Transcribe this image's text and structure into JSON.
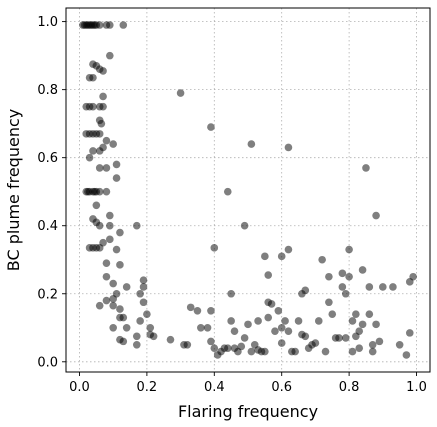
{
  "chart_data": {
    "type": "scatter",
    "title": "",
    "xlabel": "Flaring frequency",
    "ylabel": "BC plume frequency",
    "xlim": [
      -0.04,
      1.04
    ],
    "ylim": [
      -0.03,
      1.04
    ],
    "xticks": [
      0.0,
      0.2,
      0.4,
      0.6,
      0.8,
      1.0
    ],
    "xtick_labels": [
      "0.0",
      "0.2",
      "0.4",
      "0.6",
      "0.8",
      "1.0"
    ],
    "yticks": [
      0.0,
      0.2,
      0.4,
      0.6,
      0.8,
      1.0
    ],
    "ytick_labels": [
      "0.0",
      "0.2",
      "0.4",
      "0.6",
      "0.8",
      "1.0"
    ],
    "grid": true,
    "marker_color": "#000000",
    "marker_alpha": 0.5,
    "series": [
      {
        "points": [
          [
            0.01,
            0.99
          ],
          [
            0.015,
            0.99
          ],
          [
            0.02,
            0.99
          ],
          [
            0.025,
            0.99
          ],
          [
            0.03,
            0.99
          ],
          [
            0.035,
            0.99
          ],
          [
            0.04,
            0.99
          ],
          [
            0.045,
            0.99
          ],
          [
            0.05,
            0.99
          ],
          [
            0.06,
            0.99
          ],
          [
            0.08,
            0.99
          ],
          [
            0.09,
            0.99
          ],
          [
            0.13,
            0.99
          ],
          [
            0.09,
            0.9
          ],
          [
            0.04,
            0.875
          ],
          [
            0.05,
            0.87
          ],
          [
            0.06,
            0.86
          ],
          [
            0.07,
            0.855
          ],
          [
            0.03,
            0.835
          ],
          [
            0.04,
            0.835
          ],
          [
            0.07,
            0.78
          ],
          [
            0.02,
            0.75
          ],
          [
            0.03,
            0.75
          ],
          [
            0.04,
            0.75
          ],
          [
            0.06,
            0.75
          ],
          [
            0.07,
            0.75
          ],
          [
            0.06,
            0.71
          ],
          [
            0.065,
            0.7
          ],
          [
            0.02,
            0.67
          ],
          [
            0.03,
            0.67
          ],
          [
            0.04,
            0.67
          ],
          [
            0.05,
            0.67
          ],
          [
            0.06,
            0.67
          ],
          [
            0.08,
            0.65
          ],
          [
            0.1,
            0.64
          ],
          [
            0.04,
            0.62
          ],
          [
            0.06,
            0.62
          ],
          [
            0.07,
            0.63
          ],
          [
            0.03,
            0.6
          ],
          [
            0.11,
            0.58
          ],
          [
            0.06,
            0.57
          ],
          [
            0.08,
            0.57
          ],
          [
            0.11,
            0.54
          ],
          [
            0.02,
            0.5
          ],
          [
            0.025,
            0.5
          ],
          [
            0.03,
            0.5
          ],
          [
            0.04,
            0.5
          ],
          [
            0.045,
            0.5
          ],
          [
            0.05,
            0.5
          ],
          [
            0.06,
            0.5
          ],
          [
            0.08,
            0.5
          ],
          [
            0.05,
            0.46
          ],
          [
            0.09,
            0.43
          ],
          [
            0.04,
            0.42
          ],
          [
            0.05,
            0.41
          ],
          [
            0.06,
            0.4
          ],
          [
            0.09,
            0.4
          ],
          [
            0.17,
            0.4
          ],
          [
            0.12,
            0.38
          ],
          [
            0.09,
            0.36
          ],
          [
            0.07,
            0.35
          ],
          [
            0.03,
            0.335
          ],
          [
            0.04,
            0.335
          ],
          [
            0.05,
            0.335
          ],
          [
            0.06,
            0.335
          ],
          [
            0.11,
            0.33
          ],
          [
            0.08,
            0.29
          ],
          [
            0.12,
            0.285
          ],
          [
            0.08,
            0.25
          ],
          [
            0.1,
            0.23
          ],
          [
            0.14,
            0.22
          ],
          [
            0.19,
            0.24
          ],
          [
            0.19,
            0.22
          ],
          [
            0.18,
            0.2
          ],
          [
            0.11,
            0.2
          ],
          [
            0.1,
            0.185
          ],
          [
            0.08,
            0.18
          ],
          [
            0.06,
            0.165
          ],
          [
            0.1,
            0.165
          ],
          [
            0.12,
            0.155
          ],
          [
            0.19,
            0.175
          ],
          [
            0.2,
            0.14
          ],
          [
            0.12,
            0.13
          ],
          [
            0.13,
            0.13
          ],
          [
            0.1,
            0.1
          ],
          [
            0.14,
            0.1
          ],
          [
            0.18,
            0.12
          ],
          [
            0.21,
            0.1
          ],
          [
            0.17,
            0.075
          ],
          [
            0.21,
            0.08
          ],
          [
            0.22,
            0.075
          ],
          [
            0.12,
            0.065
          ],
          [
            0.13,
            0.06
          ],
          [
            0.17,
            0.05
          ],
          [
            0.3,
            0.79
          ],
          [
            0.39,
            0.69
          ],
          [
            0.51,
            0.64
          ],
          [
            0.62,
            0.63
          ],
          [
            0.44,
            0.5
          ],
          [
            0.49,
            0.4
          ],
          [
            0.4,
            0.335
          ],
          [
            0.55,
            0.31
          ],
          [
            0.6,
            0.31
          ],
          [
            0.62,
            0.33
          ],
          [
            0.56,
            0.255
          ],
          [
            0.45,
            0.2
          ],
          [
            0.27,
            0.065
          ],
          [
            0.31,
            0.05
          ],
          [
            0.32,
            0.05
          ],
          [
            0.33,
            0.16
          ],
          [
            0.35,
            0.15
          ],
          [
            0.36,
            0.1
          ],
          [
            0.38,
            0.1
          ],
          [
            0.39,
            0.15
          ],
          [
            0.39,
            0.06
          ],
          [
            0.4,
            0.04
          ],
          [
            0.41,
            0.02
          ],
          [
            0.42,
            0.03
          ],
          [
            0.43,
            0.04
          ],
          [
            0.44,
            0.04
          ],
          [
            0.45,
            0.12
          ],
          [
            0.46,
            0.09
          ],
          [
            0.46,
            0.04
          ],
          [
            0.47,
            0.03
          ],
          [
            0.48,
            0.045
          ],
          [
            0.49,
            0.07
          ],
          [
            0.5,
            0.11
          ],
          [
            0.51,
            0.03
          ],
          [
            0.52,
            0.05
          ],
          [
            0.53,
            0.12
          ],
          [
            0.53,
            0.035
          ],
          [
            0.54,
            0.03
          ],
          [
            0.55,
            0.03
          ],
          [
            0.56,
            0.175
          ],
          [
            0.56,
            0.13
          ],
          [
            0.57,
            0.17
          ],
          [
            0.58,
            0.09
          ],
          [
            0.59,
            0.15
          ],
          [
            0.6,
            0.1
          ],
          [
            0.6,
            0.055
          ],
          [
            0.61,
            0.12
          ],
          [
            0.62,
            0.09
          ],
          [
            0.63,
            0.03
          ],
          [
            0.64,
            0.03
          ],
          [
            0.65,
            0.12
          ],
          [
            0.66,
            0.2
          ],
          [
            0.66,
            0.08
          ],
          [
            0.67,
            0.21
          ],
          [
            0.67,
            0.075
          ],
          [
            0.68,
            0.04
          ],
          [
            0.69,
            0.05
          ],
          [
            0.7,
            0.055
          ],
          [
            0.71,
            0.12
          ],
          [
            0.72,
            0.3
          ],
          [
            0.73,
            0.03
          ],
          [
            0.74,
            0.25
          ],
          [
            0.74,
            0.175
          ],
          [
            0.75,
            0.14
          ],
          [
            0.76,
            0.07
          ],
          [
            0.77,
            0.07
          ],
          [
            0.78,
            0.22
          ],
          [
            0.78,
            0.26
          ],
          [
            0.79,
            0.2
          ],
          [
            0.79,
            0.07
          ],
          [
            0.8,
            0.33
          ],
          [
            0.8,
            0.25
          ],
          [
            0.81,
            0.12
          ],
          [
            0.81,
            0.03
          ],
          [
            0.82,
            0.075
          ],
          [
            0.82,
            0.14
          ],
          [
            0.83,
            0.09
          ],
          [
            0.83,
            0.04
          ],
          [
            0.84,
            0.27
          ],
          [
            0.84,
            0.11
          ],
          [
            0.85,
            0.57
          ],
          [
            0.86,
            0.22
          ],
          [
            0.86,
            0.14
          ],
          [
            0.87,
            0.05
          ],
          [
            0.87,
            0.03
          ],
          [
            0.88,
            0.43
          ],
          [
            0.88,
            0.11
          ],
          [
            0.89,
            0.06
          ],
          [
            0.9,
            0.22
          ],
          [
            0.93,
            0.22
          ],
          [
            0.95,
            0.05
          ],
          [
            0.97,
            0.02
          ],
          [
            0.98,
            0.235
          ],
          [
            0.98,
            0.085
          ],
          [
            0.99,
            0.25
          ]
        ]
      }
    ]
  }
}
